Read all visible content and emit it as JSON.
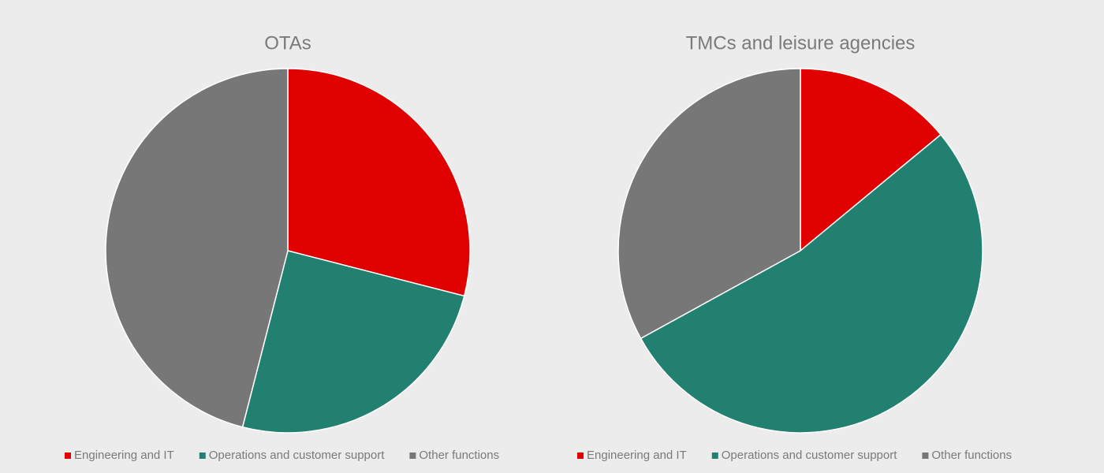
{
  "chart_data": [
    {
      "type": "pie",
      "title": "OTAs",
      "categories": [
        "Engineering and IT",
        "Operations and customer support",
        "Other functions"
      ],
      "values": [
        29,
        25,
        46
      ],
      "colors": [
        "#e00000",
        "#228070",
        "#777777"
      ]
    },
    {
      "type": "pie",
      "title": "TMCs and leisure agencies",
      "categories": [
        "Engineering and IT",
        "Operations and customer support",
        "Other functions"
      ],
      "values": [
        14,
        53,
        33
      ],
      "colors": [
        "#e00000",
        "#228070",
        "#777777"
      ]
    }
  ]
}
